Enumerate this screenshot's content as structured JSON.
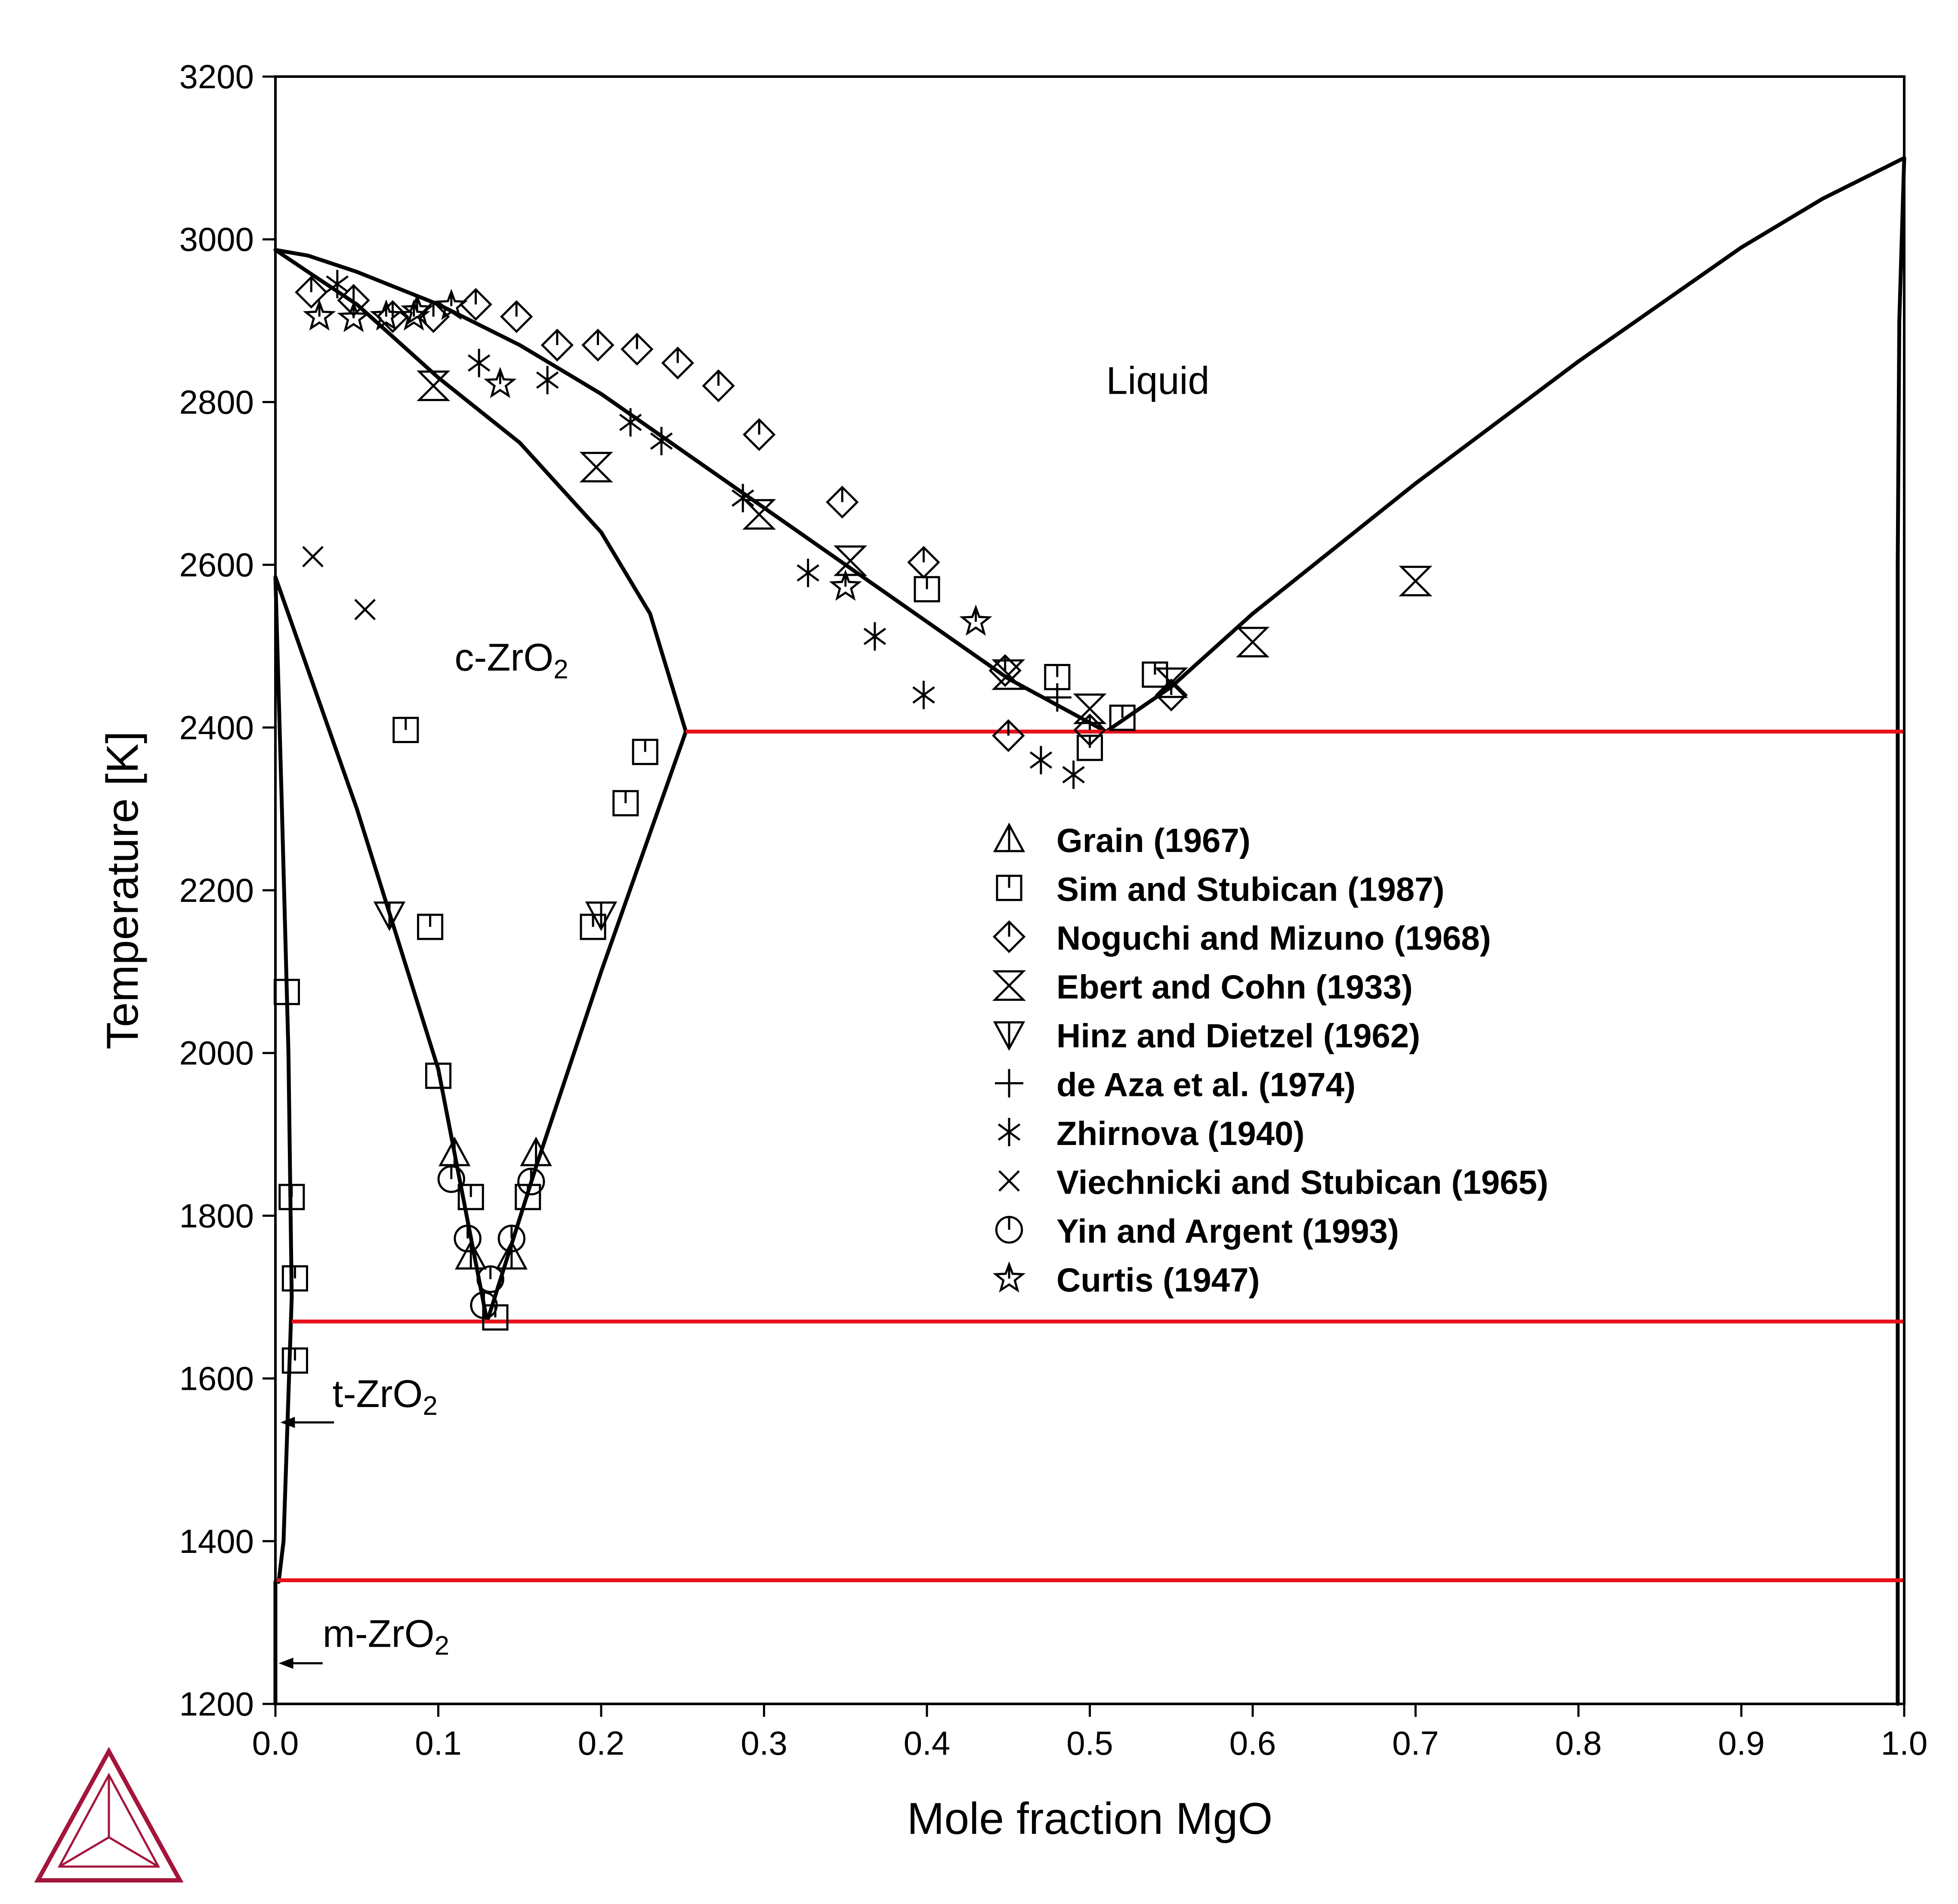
{
  "chart_data": {
    "type": "scatter",
    "title": "",
    "xlabel": "Mole fraction MgO",
    "ylabel": "Temperature [K]",
    "xlim": [
      0.0,
      1.0
    ],
    "ylim": [
      1200,
      3200
    ],
    "xticks": [
      "0.0",
      "0.1",
      "0.2",
      "0.3",
      "0.4",
      "0.5",
      "0.6",
      "0.7",
      "0.8",
      "0.9",
      "1.0"
    ],
    "yticks": [
      "1200",
      "1400",
      "1600",
      "1800",
      "2000",
      "2200",
      "2400",
      "2600",
      "2800",
      "3000",
      "3200"
    ],
    "grid": false,
    "legend_position": "center-right",
    "region_labels": [
      {
        "main": "Liquid",
        "sub": "",
        "x": 0.51,
        "y": 2810
      },
      {
        "main": "c-ZrO",
        "sub": "2",
        "x": 0.11,
        "y": 2470
      },
      {
        "main": "t-ZrO",
        "sub": "2",
        "x": 0.035,
        "y": 1565
      },
      {
        "main": "m-ZrO",
        "sub": "2",
        "x": 0.029,
        "y": 1270
      }
    ],
    "arrows": [
      {
        "from": [
          0.036,
          1546
        ],
        "to": [
          0.003,
          1546
        ]
      },
      {
        "from": [
          0.029,
          1250
        ],
        "to": [
          0.002,
          1250
        ]
      }
    ],
    "colors": {
      "phase_boundary": "#000000",
      "invariant": "#e8101a",
      "markers": "#000000"
    },
    "phase_boundaries": [
      {
        "name": "liquidus-left",
        "points": [
          [
            0.0,
            2987
          ],
          [
            0.02,
            2980
          ],
          [
            0.05,
            2960
          ],
          [
            0.1,
            2920
          ],
          [
            0.15,
            2870
          ],
          [
            0.2,
            2810
          ],
          [
            0.25,
            2740
          ],
          [
            0.3,
            2670
          ],
          [
            0.35,
            2600
          ],
          [
            0.4,
            2530
          ],
          [
            0.45,
            2460
          ],
          [
            0.51,
            2395
          ]
        ]
      },
      {
        "name": "liquidus-right",
        "points": [
          [
            0.51,
            2395
          ],
          [
            0.55,
            2450
          ],
          [
            0.6,
            2540
          ],
          [
            0.7,
            2700
          ],
          [
            0.8,
            2850
          ],
          [
            0.9,
            2990
          ],
          [
            0.95,
            3050
          ],
          [
            1.0,
            3100
          ]
        ]
      },
      {
        "name": "solidus-cZrO2",
        "points": [
          [
            0.0,
            2987
          ],
          [
            0.02,
            2960
          ],
          [
            0.05,
            2920
          ],
          [
            0.1,
            2830
          ],
          [
            0.15,
            2750
          ],
          [
            0.2,
            2640
          ],
          [
            0.23,
            2540
          ],
          [
            0.252,
            2395
          ]
        ]
      },
      {
        "name": "c-ZrO2-left",
        "points": [
          [
            0.0,
            2585
          ],
          [
            0.05,
            2300
          ],
          [
            0.1,
            1980
          ],
          [
            0.13,
            1670
          ]
        ]
      },
      {
        "name": "c-ZrO2-right",
        "points": [
          [
            0.13,
            1670
          ],
          [
            0.16,
            1860
          ],
          [
            0.2,
            2100
          ],
          [
            0.252,
            2395
          ]
        ]
      },
      {
        "name": "t-ZrO2-boundary",
        "points": [
          [
            0.0,
            2585
          ],
          [
            0.004,
            2300
          ],
          [
            0.008,
            2000
          ],
          [
            0.01,
            1700
          ],
          [
            0.005,
            1400
          ],
          [
            0.002,
            1350
          ]
        ]
      },
      {
        "name": "MgO-solvus",
        "points": [
          [
            1.0,
            3100
          ],
          [
            0.997,
            2900
          ],
          [
            0.996,
            2600
          ],
          [
            0.996,
            2000
          ],
          [
            0.996,
            1500
          ],
          [
            0.996,
            1200
          ]
        ]
      },
      {
        "name": "m-ZrO2-line",
        "points": [
          [
            0.0,
            1350
          ],
          [
            0.0,
            1200
          ]
        ]
      }
    ],
    "invariants": [
      {
        "name": "eutectic",
        "y": 2395,
        "x": [
          0.252,
          1.0
        ]
      },
      {
        "name": "eutectoid",
        "y": 1670,
        "x": [
          0.01,
          1.0
        ]
      },
      {
        "name": "monoclinic",
        "y": 1352,
        "x": [
          0.0,
          1.0
        ]
      }
    ],
    "series": [
      {
        "name": "Grain (1967)",
        "marker": "triangle",
        "points": [
          [
            0.11,
            1877
          ],
          [
            0.16,
            1877
          ],
          [
            0.12,
            1750
          ],
          [
            0.145,
            1750
          ]
        ]
      },
      {
        "name": "Sim and Stubican (1987)",
        "marker": "square",
        "points": [
          [
            0.08,
            2397
          ],
          [
            0.227,
            2370
          ],
          [
            0.215,
            2307
          ],
          [
            0.095,
            2155
          ],
          [
            0.195,
            2155
          ],
          [
            0.1,
            1972
          ],
          [
            0.007,
            2075
          ],
          [
            0.01,
            1823
          ],
          [
            0.012,
            1723
          ],
          [
            0.012,
            1622
          ],
          [
            0.12,
            1823
          ],
          [
            0.155,
            1823
          ],
          [
            0.135,
            1675
          ],
          [
            0.4,
            2570
          ],
          [
            0.48,
            2462
          ],
          [
            0.5,
            2375
          ],
          [
            0.52,
            2412
          ],
          [
            0.54,
            2465
          ]
        ]
      },
      {
        "name": "Noguchi and Mizuno (1968)",
        "marker": "diamond",
        "points": [
          [
            0.022,
            2935
          ],
          [
            0.048,
            2925
          ],
          [
            0.072,
            2905
          ],
          [
            0.097,
            2905
          ],
          [
            0.123,
            2920
          ],
          [
            0.148,
            2905
          ],
          [
            0.173,
            2870
          ],
          [
            0.198,
            2870
          ],
          [
            0.222,
            2865
          ],
          [
            0.247,
            2848
          ],
          [
            0.272,
            2820
          ],
          [
            0.297,
            2760
          ],
          [
            0.348,
            2677
          ],
          [
            0.398,
            2603
          ],
          [
            0.448,
            2470
          ],
          [
            0.45,
            2390
          ],
          [
            0.5,
            2397
          ],
          [
            0.55,
            2440
          ]
        ]
      },
      {
        "name": "Ebert and Cohn (1933)",
        "marker": "hourglass",
        "points": [
          [
            0.097,
            2820
          ],
          [
            0.197,
            2720
          ],
          [
            0.297,
            2662
          ],
          [
            0.353,
            2605
          ],
          [
            0.45,
            2465
          ],
          [
            0.5,
            2423
          ],
          [
            0.55,
            2455
          ],
          [
            0.6,
            2505
          ],
          [
            0.7,
            2580
          ]
        ]
      },
      {
        "name": "Hinz and Dietzel (1962)",
        "marker": "triangle-down",
        "points": [
          [
            0.07,
            2170
          ],
          [
            0.2,
            2170
          ]
        ]
      },
      {
        "name": "de Aza et al. (1974)",
        "marker": "plus",
        "points": [
          [
            0.48,
            2437
          ]
        ]
      },
      {
        "name": "Zhirnova (1940)",
        "marker": "asterisk",
        "points": [
          [
            0.038,
            2945
          ],
          [
            0.125,
            2848
          ],
          [
            0.167,
            2827
          ],
          [
            0.218,
            2775
          ],
          [
            0.237,
            2752
          ],
          [
            0.287,
            2682
          ],
          [
            0.327,
            2590
          ],
          [
            0.368,
            2512
          ],
          [
            0.398,
            2440
          ],
          [
            0.47,
            2360
          ],
          [
            0.49,
            2342
          ]
        ]
      },
      {
        "name": "Viechnicki and Stubican (1965)",
        "marker": "x",
        "points": [
          [
            0.023,
            2610
          ],
          [
            0.055,
            2545
          ]
        ]
      },
      {
        "name": "Yin and Argent (1993)",
        "marker": "circle",
        "points": [
          [
            0.108,
            1845
          ],
          [
            0.118,
            1772
          ],
          [
            0.128,
            1690
          ],
          [
            0.132,
            1722
          ],
          [
            0.145,
            1772
          ],
          [
            0.157,
            1842
          ]
        ]
      },
      {
        "name": "Curtis (1947)",
        "marker": "star",
        "points": [
          [
            0.027,
            2905
          ],
          [
            0.048,
            2903
          ],
          [
            0.068,
            2905
          ],
          [
            0.085,
            2905
          ],
          [
            0.087,
            2912
          ],
          [
            0.108,
            2918
          ],
          [
            0.138,
            2822
          ],
          [
            0.35,
            2573
          ],
          [
            0.43,
            2530
          ]
        ]
      }
    ]
  }
}
